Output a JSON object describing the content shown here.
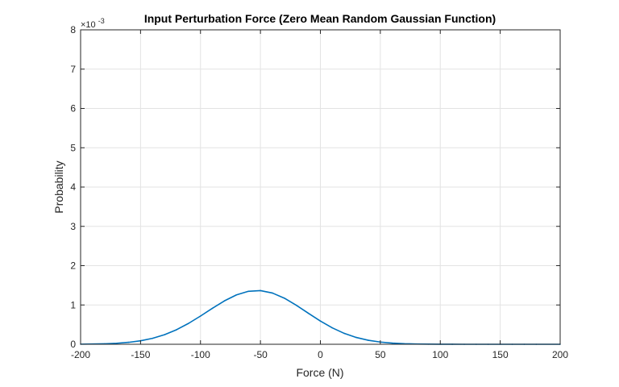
{
  "chart_data": {
    "type": "line",
    "title": "Input Perturbation Force (Zero Mean Random Gaussian Function)",
    "xlabel": "Force (N)",
    "ylabel": "Probability",
    "y_exponent_label": "×10",
    "y_exponent_power": "-3",
    "xlim": [
      -200,
      200
    ],
    "ylim": [
      0,
      0.008
    ],
    "xticks": [
      -200,
      -150,
      -100,
      -50,
      0,
      50,
      100,
      150,
      200
    ],
    "xtick_labels": [
      "-200",
      "-150",
      "-100",
      "-50",
      "0",
      "50",
      "100",
      "150",
      "200"
    ],
    "yticks": [
      0,
      0.001,
      0.002,
      0.003,
      0.004,
      0.005,
      0.006,
      0.007,
      0.008
    ],
    "ytick_labels": [
      "0",
      "1",
      "2",
      "3",
      "4",
      "5",
      "6",
      "7",
      "8"
    ],
    "grid": true,
    "series": [
      {
        "color": "#0072bd",
        "x": [
          -200,
          -180,
          -170,
          -160,
          -150,
          -140,
          -130,
          -120,
          -110,
          -100,
          -90,
          -80,
          -70,
          -60,
          -50,
          -40,
          -30,
          -20,
          -10,
          0,
          10,
          20,
          30,
          40,
          50,
          60,
          70,
          80,
          90,
          100,
          110,
          120,
          130,
          140,
          150,
          160,
          170,
          180,
          200
        ],
        "values": [
          2.7e-06,
          1.26e-05,
          2.56e-05,
          4.91e-05,
          8.88e-05,
          0.0001514,
          0.0002437,
          0.0003702,
          0.0005307,
          0.000718,
          0.0009168,
          0.0011047,
          0.0012562,
          0.0013479,
          0.001365,
          0.0013036,
          0.0011718,
          0.000991,
          0.0007885,
          0.0005905,
          0.0004163,
          0.0002762,
          0.0001726,
          0.0001015,
          5.63e-05,
          2.93e-05,
          1.44e-05,
          6.7e-06,
          2.9e-06,
          1.2e-06,
          5e-07,
          2e-07,
          1e-07,
          0.0,
          0.0,
          0.0,
          0.0,
          0.0,
          0.0
        ]
      }
    ]
  }
}
